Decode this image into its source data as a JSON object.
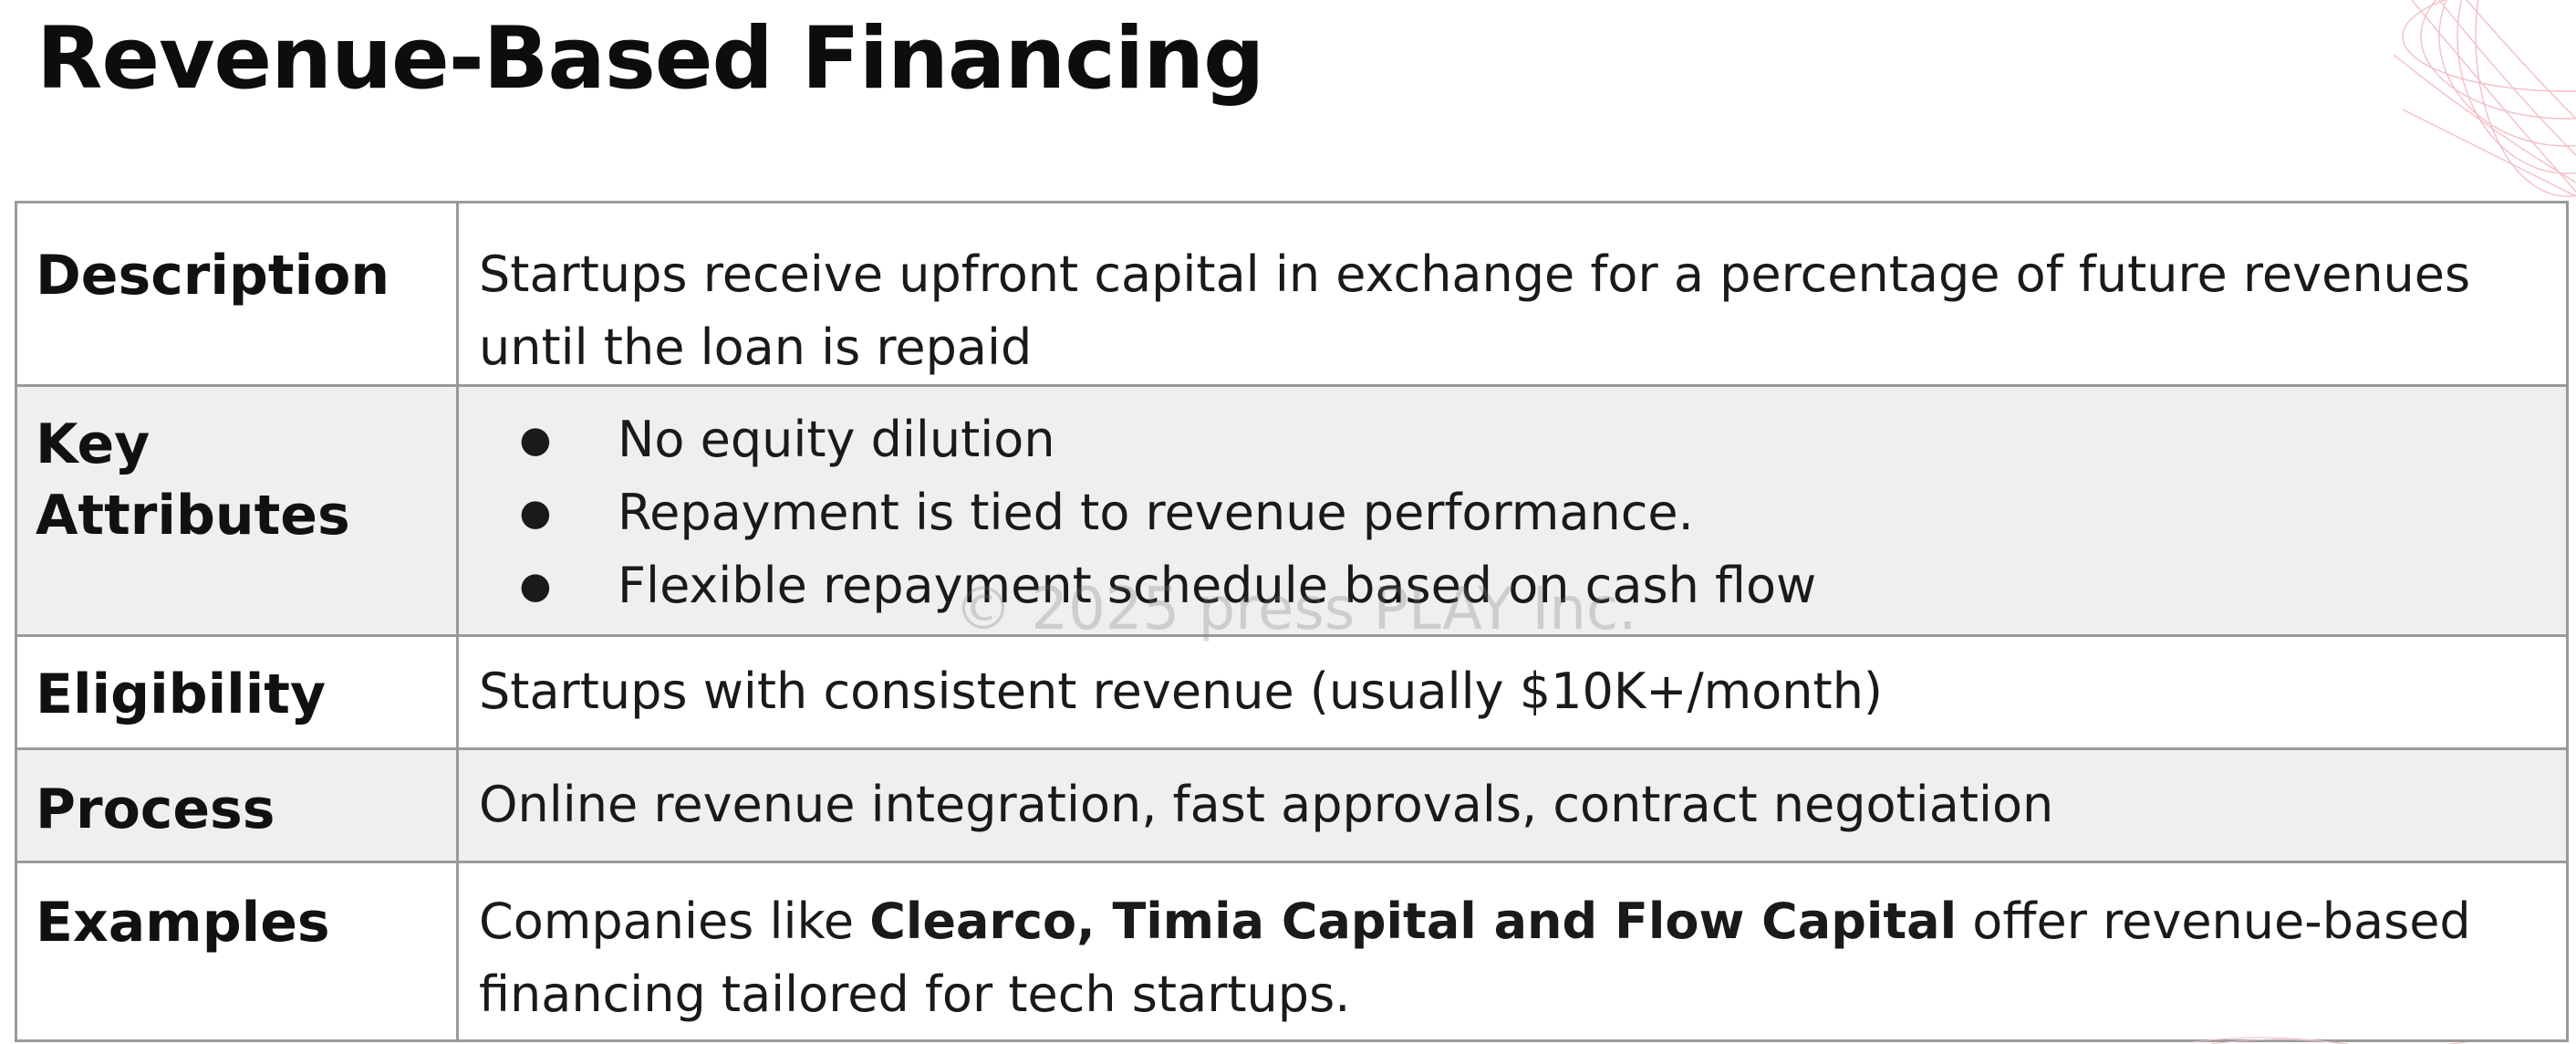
{
  "title": "Revenue-Based Financing",
  "watermark": "© 2025 press PLAY Inc.",
  "colors": {
    "border": "#9a9a9a",
    "shaded_row": "#efefef",
    "text": "#111111",
    "decoration": "#f2b8c0"
  },
  "rows": {
    "description": {
      "label": "Description",
      "value": "Startups receive upfront capital in exchange for a percentage of future revenues until the loan is repaid"
    },
    "key_attributes": {
      "label": "Key Attributes",
      "bullets": [
        "No equity dilution",
        "Repayment is tied to revenue performance.",
        "Flexible repayment schedule based on cash flow"
      ],
      "bullet_symbol": "●"
    },
    "eligibility": {
      "label": "Eligibility",
      "value": "Startups with consistent revenue (usually $10K+/month)"
    },
    "process": {
      "label": "Process",
      "value": "Online revenue integration, fast approvals, contract negotiation"
    },
    "examples": {
      "label": "Examples",
      "prefix": "Companies like ",
      "bold": "Clearco, Timia Capital and Flow Capital",
      "suffix": " offer revenue-based financing tailored for tech startups."
    }
  },
  "icons": {
    "decoration": "pink-wireframe-globe-icon"
  }
}
